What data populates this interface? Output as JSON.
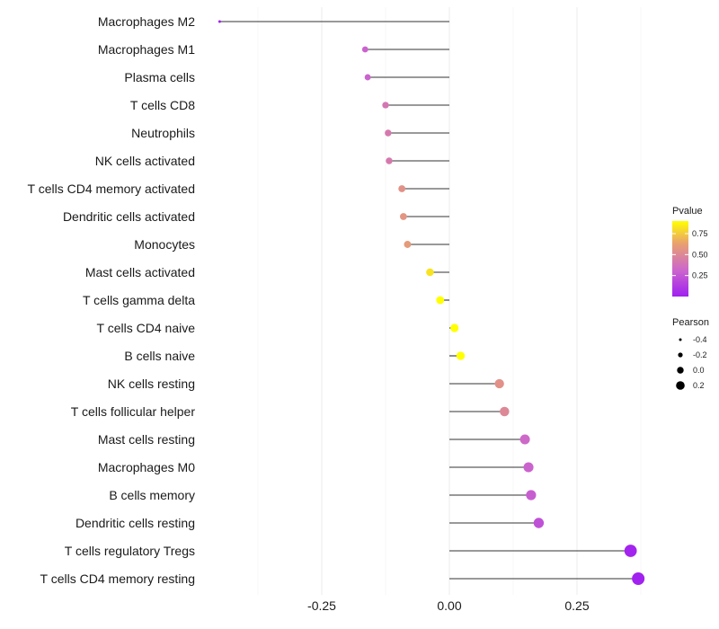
{
  "chart_data": {
    "type": "lollipop",
    "title": "",
    "xlabel": "",
    "ylabel": "",
    "xlim": [
      -0.5,
      0.4
    ],
    "x_ticks": [
      -0.25,
      0.0,
      0.25
    ],
    "x_tick_labels": [
      "-0.25",
      "0.00",
      "0.25"
    ],
    "grid": true,
    "legend_position": "right",
    "series": [
      {
        "name": "Macrophages M2",
        "pearson": -0.45,
        "pvalue": 0.0
      },
      {
        "name": "Macrophages M1",
        "pearson": -0.165,
        "pvalue": 0.3
      },
      {
        "name": "Plasma cells",
        "pearson": -0.16,
        "pvalue": 0.3
      },
      {
        "name": "T cells CD8",
        "pearson": -0.125,
        "pvalue": 0.4
      },
      {
        "name": "Neutrophils",
        "pearson": -0.12,
        "pvalue": 0.42
      },
      {
        "name": "NK cells activated",
        "pearson": -0.118,
        "pvalue": 0.42
      },
      {
        "name": "T cells CD4 memory activated",
        "pearson": -0.093,
        "pvalue": 0.55
      },
      {
        "name": "Dendritic cells activated",
        "pearson": -0.09,
        "pvalue": 0.57
      },
      {
        "name": "Monocytes",
        "pearson": -0.082,
        "pvalue": 0.6
      },
      {
        "name": "Mast cells activated",
        "pearson": -0.038,
        "pvalue": 0.82
      },
      {
        "name": "T cells gamma delta",
        "pearson": -0.018,
        "pvalue": 0.9
      },
      {
        "name": "T cells CD4 naive",
        "pearson": 0.01,
        "pvalue": 0.95
      },
      {
        "name": "B cells naive",
        "pearson": 0.022,
        "pvalue": 0.9
      },
      {
        "name": "NK cells resting",
        "pearson": 0.098,
        "pvalue": 0.55
      },
      {
        "name": "T cells follicular helper",
        "pearson": 0.108,
        "pvalue": 0.5
      },
      {
        "name": "Mast cells resting",
        "pearson": 0.148,
        "pvalue": 0.33
      },
      {
        "name": "Macrophages M0",
        "pearson": 0.155,
        "pvalue": 0.3
      },
      {
        "name": "B cells memory",
        "pearson": 0.16,
        "pvalue": 0.28
      },
      {
        "name": "Dendritic cells resting",
        "pearson": 0.175,
        "pvalue": 0.22
      },
      {
        "name": "T cells regulatory  Tregs",
        "pearson": 0.355,
        "pvalue": 0.02
      },
      {
        "name": "T cells CD4 memory resting",
        "pearson": 0.37,
        "pvalue": 0.01
      }
    ],
    "legend_pvalue": {
      "title": "Pvalue",
      "ticks": [
        0.75,
        0.5,
        0.25
      ],
      "tick_labels": [
        "0.75",
        "0.50",
        "0.25"
      ],
      "range": [
        0.0,
        0.9
      ],
      "colors": [
        "#a020f0",
        "#cc66cc",
        "#e8a070",
        "#ffff00"
      ]
    },
    "legend_pearson": {
      "title": "Pearson",
      "values": [
        -0.4,
        -0.2,
        0.0,
        0.2
      ],
      "labels": [
        "-0.4",
        "-0.2",
        "0.0",
        "0.2"
      ]
    }
  }
}
